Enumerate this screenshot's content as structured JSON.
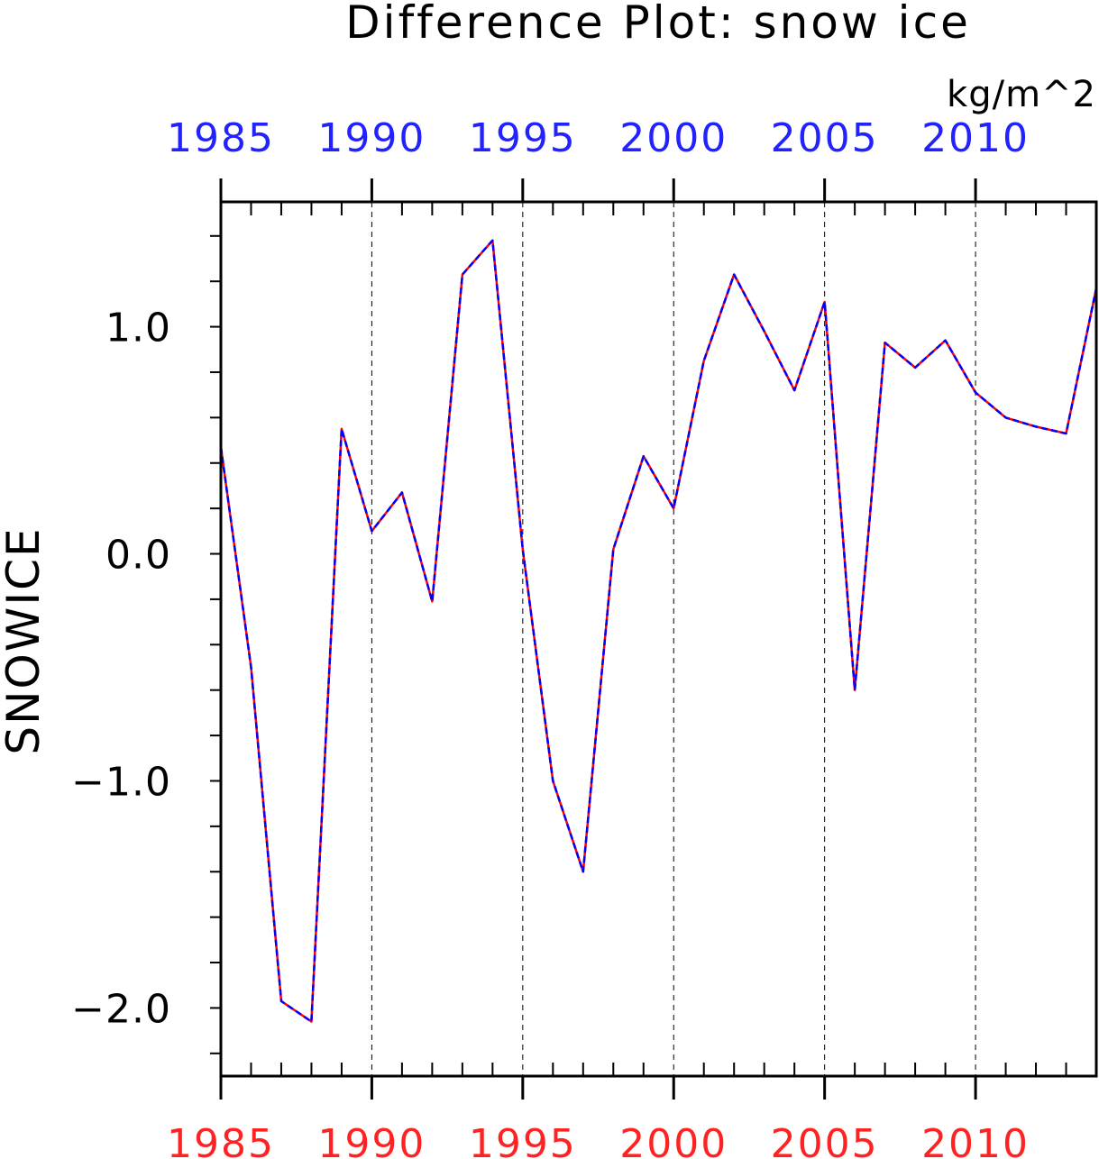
{
  "chart_data": {
    "type": "line",
    "title": "Difference Plot: snow ice",
    "units": "kg/m^2",
    "ylabel": "SNOWICE",
    "xlim": [
      1985,
      2014
    ],
    "ylim": [
      -2.3,
      1.55
    ],
    "x_ticks": [
      "1985",
      "1990",
      "1995",
      "2000",
      "2005",
      "2010"
    ],
    "y_ticks": [
      "1.0",
      "0.0",
      "−1.0",
      "−2.0"
    ],
    "grid": "dashed vertical lines at 5-year marks",
    "x": [
      1985,
      1986,
      1987,
      1988,
      1989,
      1990,
      1991,
      1992,
      1993,
      1994,
      1995,
      1996,
      1997,
      1998,
      1999,
      2000,
      2001,
      2002,
      2003,
      2004,
      2005,
      2006,
      2007,
      2008,
      2009,
      2010,
      2011,
      2012,
      2013,
      2014
    ],
    "series": [
      {
        "color": "#ff0000",
        "style": "solid",
        "values": [
          0.47,
          -0.5,
          -1.97,
          -2.06,
          0.55,
          0.1,
          0.27,
          -0.21,
          1.23,
          1.38,
          0.02,
          -1.0,
          -1.4,
          0.02,
          0.43,
          0.2,
          0.85,
          1.23,
          0.98,
          0.72,
          1.11,
          -0.6,
          0.93,
          0.82,
          0.94,
          0.71,
          0.6,
          0.56,
          0.53,
          1.17
        ]
      },
      {
        "color": "#0000ff",
        "style": "dashed",
        "values": [
          0.47,
          -0.5,
          -1.97,
          -2.06,
          0.55,
          0.1,
          0.27,
          -0.21,
          1.23,
          1.38,
          0.02,
          -1.0,
          -1.4,
          0.02,
          0.43,
          0.2,
          0.85,
          1.23,
          0.98,
          0.72,
          1.11,
          -0.6,
          0.93,
          0.82,
          0.94,
          0.71,
          0.6,
          0.56,
          0.53,
          1.17
        ]
      }
    ],
    "bottom_axis_color": "#ff2222",
    "top_axis_color": "#2222ff",
    "frame_color": "#000000"
  }
}
